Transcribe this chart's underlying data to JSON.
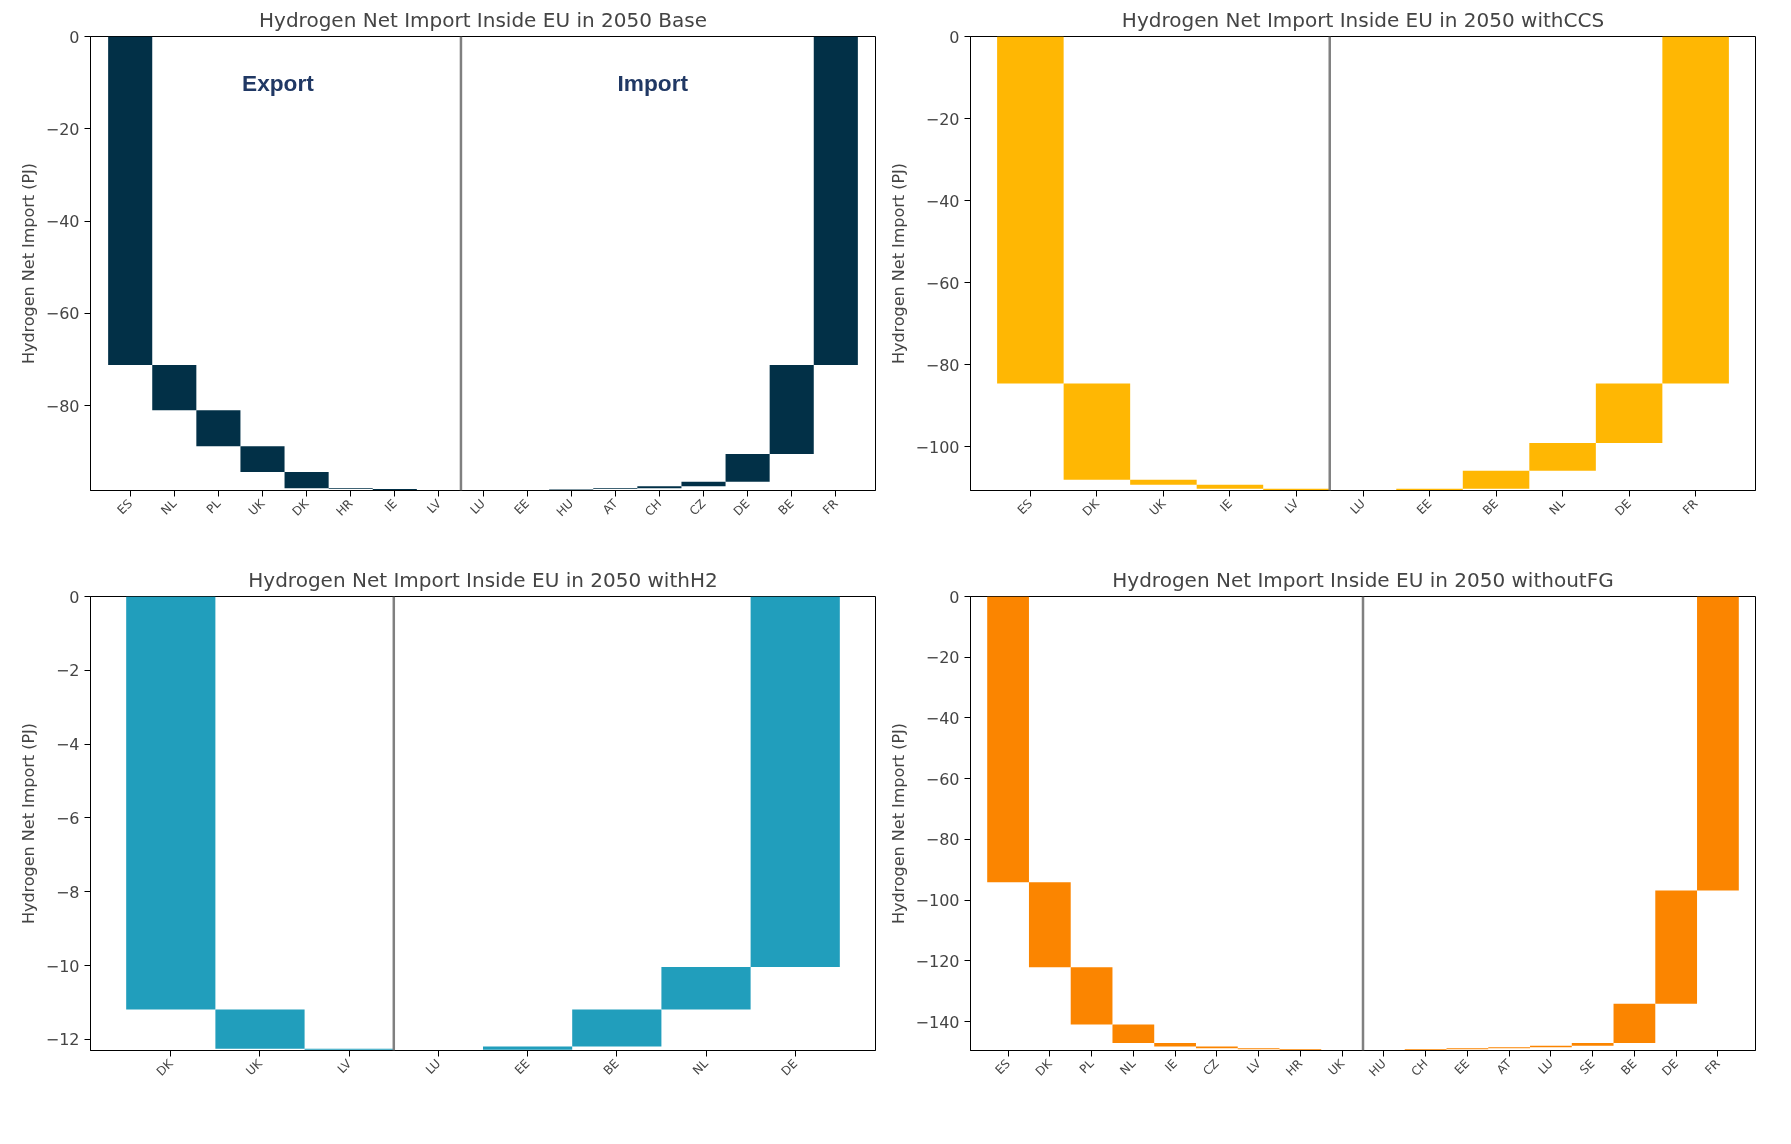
{
  "chart_data": [
    {
      "type": "bar",
      "title": "Hydrogen Net Import Inside EU in 2050 Base",
      "ylabel": "Hydrogen Net Import (PJ)",
      "categories": [
        "ES",
        "NL",
        "PL",
        "UK",
        "DK",
        "HR",
        "IE",
        "LV",
        "LU",
        "EE",
        "HU",
        "AT",
        "CH",
        "CZ",
        "DE",
        "BE",
        "FR"
      ],
      "values": [
        -71.2,
        -9.8,
        -7.8,
        -5.6,
        -3.5,
        -0.2,
        -0.2,
        -0.1,
        0.1,
        null,
        0.1,
        0.2,
        0.4,
        1.0,
        6.0,
        19.3,
        71.2
      ],
      "base": [
        0,
        -71.2,
        -81.0,
        -88.8,
        -94.4,
        -97.9,
        -98.1,
        -98.3,
        -98.4,
        null,
        -98.2,
        -98.1,
        -97.9,
        -97.5,
        -96.5,
        -90.5,
        -71.2
      ],
      "color": "#023047",
      "ylim": [
        -98.4,
        0
      ],
      "yticks": [
        0,
        {
          "value": -20,
          "label": "−20"
        },
        {
          "value": -40,
          "label": "−40"
        },
        {
          "value": -60,
          "label": "−60"
        },
        {
          "value": -80,
          "label": "−80"
        }
      ],
      "annotations": [
        "Export",
        "Import"
      ]
    },
    {
      "type": "bar",
      "title": "Hydrogen Net Import Inside EU in 2050 withCCS",
      "ylabel": "Hydrogen Net Import (PJ)",
      "categories": [
        "ES",
        "DK",
        "UK",
        "IE",
        "LV",
        "LU",
        "EE",
        "BE",
        "NL",
        "DE",
        "FR"
      ],
      "values": [
        -84.6,
        -23.5,
        -1.2,
        -1.0,
        -0.3,
        null,
        0.3,
        4.4,
        6.8,
        14.5,
        84.6
      ],
      "base": [
        0,
        -84.6,
        -108.1,
        -109.3,
        -110.3,
        null,
        -110.6,
        -110.3,
        -105.9,
        -99.1,
        -84.6
      ],
      "color": "#ffb703",
      "ylim": [
        -110.7,
        0
      ],
      "yticks": [
        0,
        {
          "value": -20,
          "label": "−20"
        },
        {
          "value": -40,
          "label": "−40"
        },
        {
          "value": -60,
          "label": "−60"
        },
        {
          "value": -80,
          "label": "−80"
        },
        {
          "value": -100,
          "label": "−100"
        }
      ]
    },
    {
      "type": "bar",
      "title": "Hydrogen Net Import Inside EU in 2050 withH2",
      "ylabel": "Hydrogen Net Import (PJ)",
      "categories": [
        "DK",
        "UK",
        "LV",
        "LU",
        "EE",
        "BE",
        "NL",
        "DE"
      ],
      "values": [
        -11.19,
        -1.06,
        -0.03,
        null,
        0.09,
        1.0,
        1.15,
        10.04
      ],
      "base": [
        0,
        -11.19,
        -12.25,
        null,
        -12.28,
        -12.19,
        -11.19,
        -10.04
      ],
      "color": "#219ebc",
      "ylim": [
        -12.3,
        0
      ],
      "yticks": [
        0,
        {
          "value": -2,
          "label": "−2"
        },
        {
          "value": -4,
          "label": "−4"
        },
        {
          "value": -6,
          "label": "−6"
        },
        {
          "value": -8,
          "label": "−8"
        },
        {
          "value": -10,
          "label": "−10"
        },
        {
          "value": -12,
          "label": "−12"
        }
      ]
    },
    {
      "type": "bar",
      "title": "Hydrogen Net Import Inside EU in 2050 withoutFG",
      "ylabel": "Hydrogen Net Import (PJ)",
      "categories": [
        "ES",
        "DK",
        "PL",
        "NL",
        "IE",
        "CZ",
        "LV",
        "HR",
        "UK",
        "HU",
        "CH",
        "EE",
        "AT",
        "LU",
        "SE",
        "BE",
        "DE",
        "FR"
      ],
      "values": [
        -94.1,
        -28.0,
        -18.8,
        -6.1,
        -1.2,
        -0.6,
        -0.3,
        -0.2,
        null,
        null,
        0.3,
        0.3,
        0.4,
        0.5,
        0.9,
        12.9,
        37.3,
        96.8
      ],
      "base": [
        0,
        -94.1,
        -122.1,
        -140.9,
        -147.0,
        -148.2,
        -148.8,
        -149.1,
        null,
        null,
        -149.4,
        -149.1,
        -148.8,
        -148.4,
        -147.9,
        -147.0,
        -134.1,
        -96.8
      ],
      "color": "#fb8500",
      "ylim": [
        -149.5,
        0
      ],
      "yticks": [
        0,
        {
          "value": -20,
          "label": "−20"
        },
        {
          "value": -40,
          "label": "−40"
        },
        {
          "value": -60,
          "label": "−60"
        },
        {
          "value": -80,
          "label": "−80"
        },
        {
          "value": -100,
          "label": "−100"
        },
        {
          "value": -120,
          "label": "−120"
        },
        {
          "value": -140,
          "label": "−140"
        }
      ]
    }
  ]
}
